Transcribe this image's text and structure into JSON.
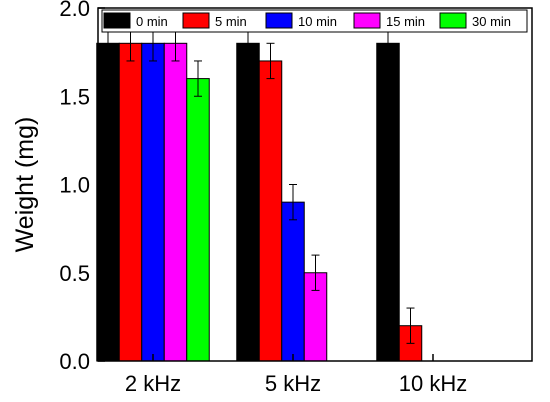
{
  "chart_data": {
    "type": "bar",
    "categories": [
      "2 kHz",
      "5 kHz",
      "10 kHz"
    ],
    "series": [
      {
        "name": "0 min",
        "color": "#000000",
        "values": [
          1.8,
          1.8,
          1.8
        ],
        "errors": [
          0.1,
          0.1,
          0.1
        ]
      },
      {
        "name": "5 min",
        "color": "#ff0000",
        "values": [
          1.8,
          1.7,
          0.2
        ],
        "errors": [
          0.1,
          0.1,
          0.1
        ]
      },
      {
        "name": "10 min",
        "color": "#0000ff",
        "values": [
          1.8,
          0.9,
          null
        ],
        "errors": [
          0.1,
          0.1,
          null
        ]
      },
      {
        "name": "15 min",
        "color": "#ff00ff",
        "values": [
          1.8,
          0.5,
          null
        ],
        "errors": [
          0.1,
          0.1,
          null
        ]
      },
      {
        "name": "30 min",
        "color": "#00ff00",
        "values": [
          1.6,
          null,
          null
        ],
        "errors": [
          0.1,
          null,
          null
        ]
      }
    ],
    "ylabel": "Weight (mg)",
    "xlabel": "",
    "ylim": [
      0,
      2.0
    ],
    "yticks": [
      "0.0",
      "0.5",
      "1.0",
      "1.5",
      "2.0"
    ],
    "legend": "top, inside plot",
    "grid": false
  }
}
